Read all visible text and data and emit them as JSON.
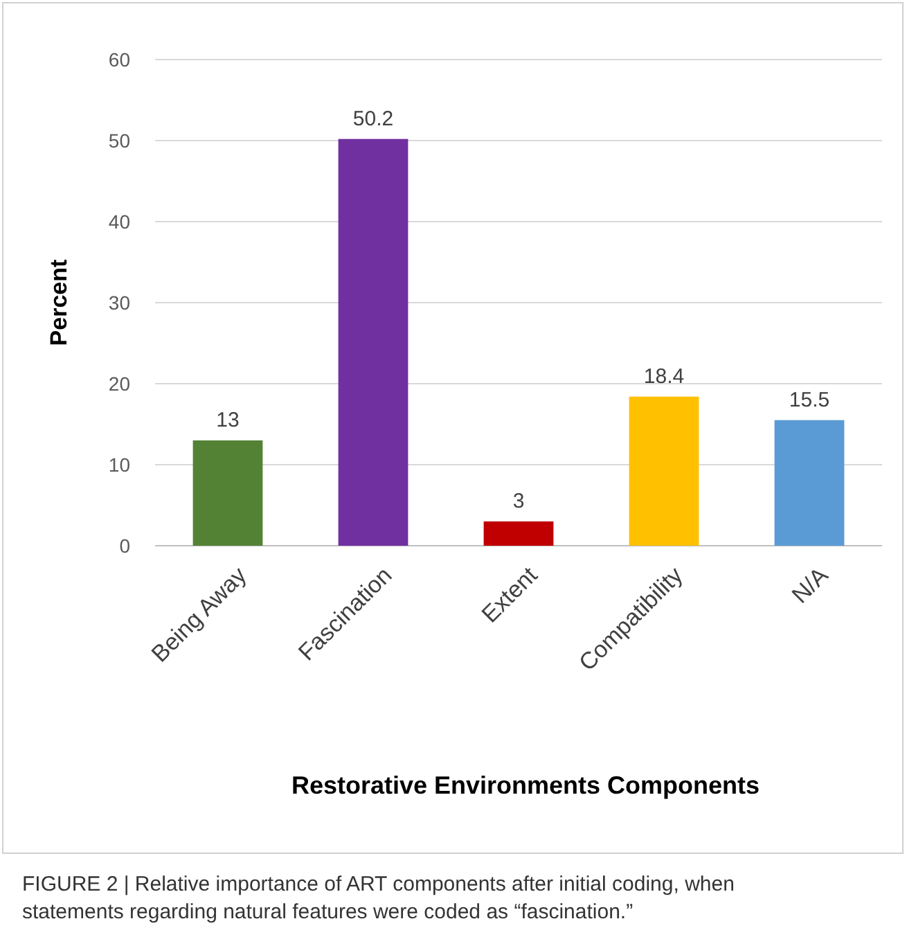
{
  "chart_data": {
    "type": "bar",
    "xlabel": "Restorative Environments Components",
    "ylabel": "Percent",
    "categories": [
      "Being Away",
      "Fascination",
      "Extent",
      "Compatibility",
      "N/A"
    ],
    "values": [
      13,
      50.2,
      3,
      18.4,
      15.5
    ],
    "colors": [
      "#548235",
      "#7030a0",
      "#c00000",
      "#ffc000",
      "#5b9bd5"
    ],
    "ylim": [
      0,
      60
    ],
    "yticks": [
      0,
      10,
      20,
      30,
      40,
      50,
      60
    ],
    "grid": "y",
    "data_labels": true,
    "annotations": [
      "FIGURE 2 | Relative importance of ART components after initial coding, when statements regarding natural features were coded as “fascination.”"
    ]
  }
}
